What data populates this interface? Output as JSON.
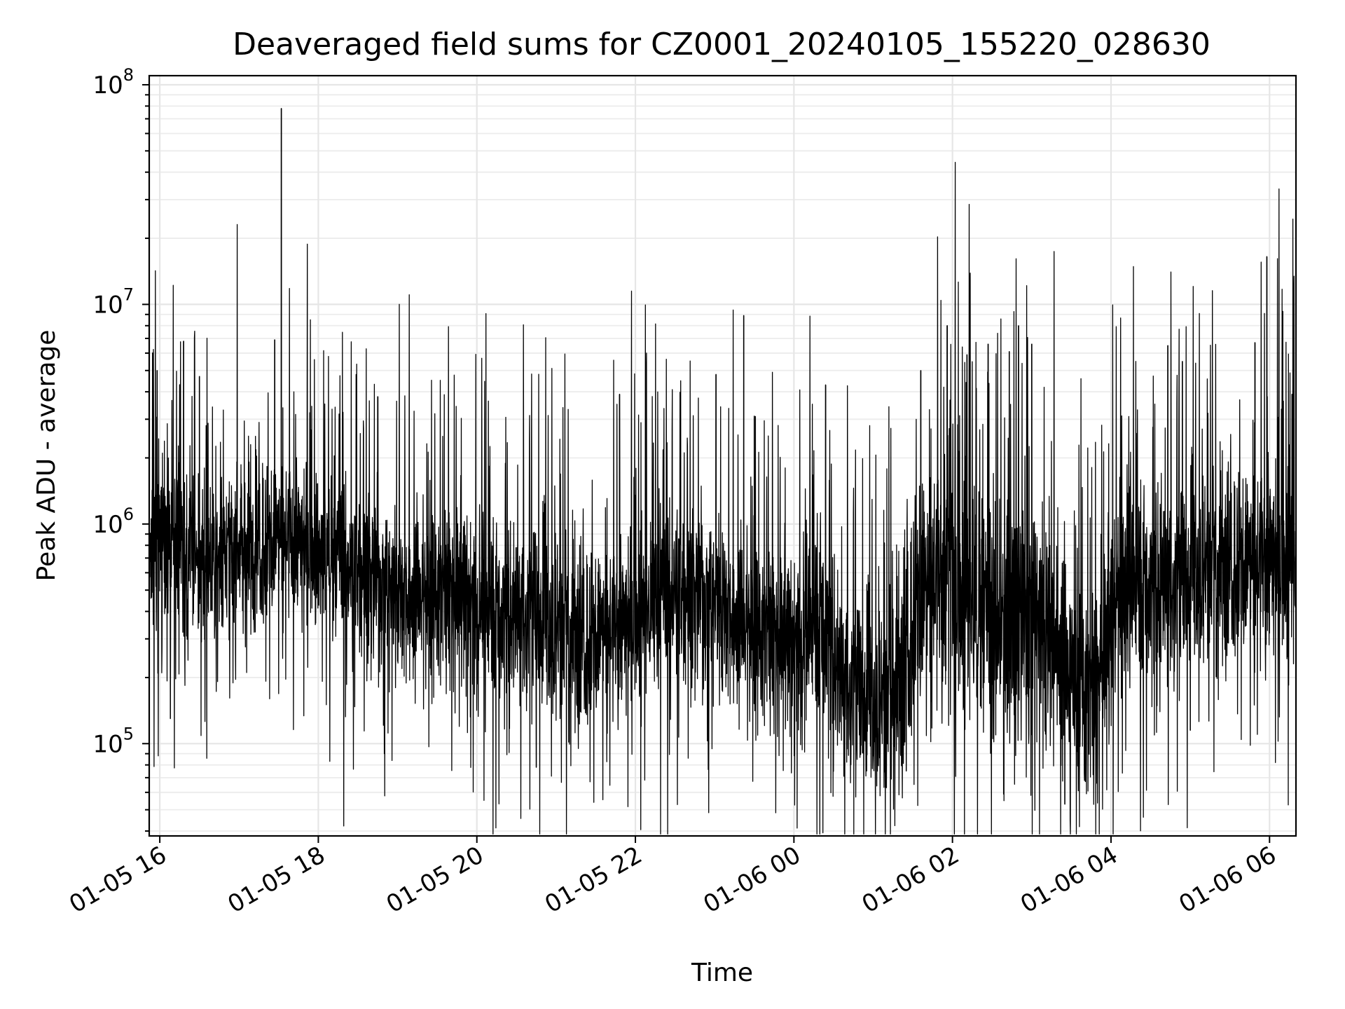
{
  "chart_data": {
    "type": "line",
    "title": "Deaveraged field sums for CZ0001_20240105_155220_028630",
    "xlabel": "Time",
    "ylabel": "Peak ADU - average",
    "yscale": "log",
    "xlim": [
      "2024-01-05 15:52",
      "2024-01-06 06:20"
    ],
    "ylim": [
      38000,
      110000000
    ],
    "grid": true,
    "x_tick_labels": [
      "01-05 16",
      "01-05 18",
      "01-05 20",
      "01-05 22",
      "01-06 00",
      "01-06 02",
      "01-06 04",
      "01-06 06"
    ],
    "x_tick_times": [
      "2024-01-05 16:00",
      "2024-01-05 18:00",
      "2024-01-05 20:00",
      "2024-01-05 22:00",
      "2024-01-06 00:00",
      "2024-01-06 02:00",
      "2024-01-06 04:00",
      "2024-01-06 06:00"
    ],
    "y_tick_labels": [
      {
        "base": "10",
        "exp": "5",
        "value": 100000
      },
      {
        "base": "10",
        "exp": "6",
        "value": 1000000
      },
      {
        "base": "10",
        "exp": "7",
        "value": 10000000
      },
      {
        "base": "10",
        "exp": "8",
        "value": 100000000
      }
    ],
    "line_color": "#000000",
    "series": [
      {
        "x": [
          "2024-01-05 15:52",
          "2024-01-05 16:00",
          "2024-01-05 16:10",
          "2024-01-05 16:20",
          "2024-01-05 16:35",
          "2024-01-05 16:50",
          "2024-01-05 17:05",
          "2024-01-05 17:20",
          "2024-01-05 17:35",
          "2024-01-05 17:50",
          "2024-01-05 18:05",
          "2024-01-05 18:20",
          "2024-01-05 18:35",
          "2024-01-05 18:50",
          "2024-01-05 19:05",
          "2024-01-05 19:20",
          "2024-01-05 19:35",
          "2024-01-05 19:50",
          "2024-01-05 20:05",
          "2024-01-05 20:20",
          "2024-01-05 20:35",
          "2024-01-05 20:50",
          "2024-01-05 21:05",
          "2024-01-05 21:20",
          "2024-01-05 21:35",
          "2024-01-05 21:50",
          "2024-01-05 22:05",
          "2024-01-05 22:20",
          "2024-01-05 22:35",
          "2024-01-05 22:50",
          "2024-01-05 23:05",
          "2024-01-05 23:20",
          "2024-01-05 23:35",
          "2024-01-05 23:50",
          "2024-01-06 00:05",
          "2024-01-06 00:20",
          "2024-01-06 00:35",
          "2024-01-06 00:50",
          "2024-01-06 01:05",
          "2024-01-06 01:20",
          "2024-01-06 01:35",
          "2024-01-06 01:50",
          "2024-01-06 02:05",
          "2024-01-06 02:20",
          "2024-01-06 02:35",
          "2024-01-06 02:50",
          "2024-01-06 03:05",
          "2024-01-06 03:20",
          "2024-01-06 03:35",
          "2024-01-06 03:50",
          "2024-01-06 04:05",
          "2024-01-06 04:20",
          "2024-01-06 04:35",
          "2024-01-06 04:50",
          "2024-01-06 05:05",
          "2024-01-06 05:20",
          "2024-01-06 05:35",
          "2024-01-06 05:50",
          "2024-01-06 06:05",
          "2024-01-06 06:20"
        ],
        "baseline": [
          700000,
          900000,
          800000,
          750000,
          650000,
          700000,
          800000,
          850000,
          900000,
          800000,
          750000,
          650000,
          600000,
          550000,
          520000,
          500000,
          480000,
          500000,
          460000,
          420000,
          380000,
          350000,
          330000,
          320000,
          320000,
          340000,
          400000,
          450000,
          480000,
          480000,
          470000,
          380000,
          320000,
          300000,
          330000,
          420000,
          200000,
          160000,
          150000,
          200000,
          500000,
          550000,
          500000,
          400000,
          350000,
          380000,
          400000,
          300000,
          180000,
          160000,
          450000,
          600000,
          550000,
          500000,
          600000,
          650000,
          700000,
          650000,
          700000,
          650000
        ],
        "spread": [
          1.9,
          2.2,
          1.7,
          1.6,
          1.6,
          1.6,
          1.7,
          1.7,
          1.6,
          1.6,
          1.7,
          1.6,
          1.6,
          1.7,
          1.7,
          1.7,
          1.7,
          1.8,
          1.8,
          1.8,
          1.8,
          1.9,
          1.9,
          1.9,
          1.8,
          1.8,
          1.8,
          1.7,
          1.7,
          1.7,
          1.8,
          1.7,
          1.7,
          1.7,
          1.8,
          2.1,
          1.9,
          1.8,
          1.8,
          2.2,
          2.6,
          2.5,
          2.5,
          2.5,
          2.5,
          2.5,
          2.5,
          2.4,
          2.1,
          2.1,
          2.1,
          2.0,
          2.0,
          2.0,
          1.9,
          1.9,
          2.0,
          2.1,
          2.1,
          2.1
        ]
      }
    ],
    "spikes": [
      {
        "x": "2024-01-05 15:58",
        "y": 5000000
      },
      {
        "x": "2024-01-05 16:18",
        "y": 6800000
      },
      {
        "x": "2024-01-05 16:30",
        "y": 4700000
      },
      {
        "x": "2024-01-05 17:27",
        "y": 6900000
      },
      {
        "x": "2024-01-05 17:32",
        "y": 78000000
      },
      {
        "x": "2024-01-05 18:45",
        "y": 3800000
      },
      {
        "x": "2024-01-05 21:48",
        "y": 3900000
      },
      {
        "x": "2024-01-05 23:01",
        "y": 4800000
      },
      {
        "x": "2024-01-05 23:22",
        "y": 8900000
      },
      {
        "x": "2024-01-05 23:30",
        "y": 3100000
      },
      {
        "x": "2024-01-06 00:24",
        "y": 4300000
      },
      {
        "x": "2024-01-06 01:36",
        "y": 5000000
      },
      {
        "x": "2024-01-06 01:56",
        "y": 8000000
      },
      {
        "x": "2024-01-06 02:11",
        "y": 5900000
      },
      {
        "x": "2024-01-06 02:27",
        "y": 6600000
      },
      {
        "x": "2024-01-06 02:43",
        "y": 6100000
      },
      {
        "x": "2024-01-06 02:50",
        "y": 8000000
      },
      {
        "x": "2024-01-06 03:00",
        "y": 6600000
      },
      {
        "x": "2024-01-06 04:43",
        "y": 6500000
      },
      {
        "x": "2024-01-06 04:54",
        "y": 5500000
      },
      {
        "x": "2024-01-06 05:49",
        "y": 6700000
      },
      {
        "x": "2024-01-06 05:58",
        "y": 16500000
      },
      {
        "x": "2024-01-06 06:10",
        "y": 9300000
      },
      {
        "x": "2024-01-06 06:17",
        "y": 3900000
      }
    ],
    "dips": [
      {
        "x": "2024-01-05 16:08",
        "y": 130000
      },
      {
        "x": "2024-01-05 20:45",
        "y": 78000
      },
      {
        "x": "2024-01-06 00:55",
        "y": 75000
      },
      {
        "x": "2024-01-06 01:10",
        "y": 63000
      },
      {
        "x": "2024-01-06 01:25",
        "y": 75000
      },
      {
        "x": "2024-01-06 03:25",
        "y": 53000
      },
      {
        "x": "2024-01-06 03:40",
        "y": 68000
      },
      {
        "x": "2024-01-06 05:00",
        "y": 115000
      }
    ]
  }
}
